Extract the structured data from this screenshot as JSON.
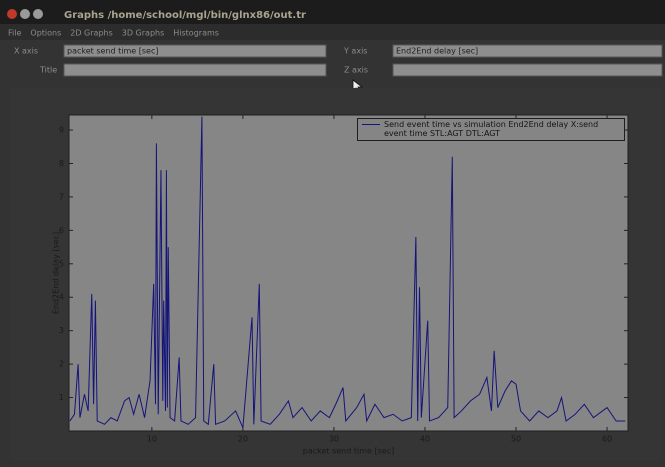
{
  "window": {
    "title": "Graphs  /home/school/mgl/bin/glnx86/out.tr"
  },
  "menu": [
    "File",
    "Options",
    "2D Graphs",
    "3D Graphs",
    "Histograms"
  ],
  "fields": [
    {
      "label": "X axis",
      "value": "packet send time [sec]"
    },
    {
      "label": "Y axis",
      "value": "End2End delay [sec]"
    },
    {
      "label": "Title"
    },
    {
      "label": "Z axis"
    }
  ],
  "chart_data": {
    "type": "line",
    "xlabel": "packet send time [sec]",
    "ylabel": "End2End delay [sec]",
    "xlim": [
      0.9,
      62.3
    ],
    "ylim": [
      0,
      9.45
    ],
    "xticks": [
      10,
      20,
      30,
      40,
      50,
      60
    ],
    "yticks": [
      1,
      2,
      3,
      4,
      5,
      6,
      7,
      8,
      9
    ],
    "legend": "upper right",
    "x": [
      1.0,
      1.5,
      1.9,
      2.1,
      2.6,
      3.0,
      3.4,
      3.6,
      3.8,
      4.0,
      4.8,
      5.5,
      6.2,
      7.0,
      7.5,
      8.0,
      8.6,
      9.2,
      9.8,
      10.2,
      10.4,
      10.5,
      10.7,
      11.0,
      11.2,
      11.3,
      11.5,
      11.6,
      11.7,
      11.8,
      12.0,
      12.5,
      13.0,
      13.2,
      14.0,
      14.8,
      15.5,
      15.7,
      16.2,
      16.8,
      17.0,
      18.0,
      19.2,
      20.0,
      21.0,
      21.2,
      21.8,
      22.0,
      23.0,
      24.0,
      25.0,
      25.5,
      26.5,
      27.5,
      28.5,
      29.5,
      30.2,
      31.0,
      31.3,
      32.5,
      33.3,
      33.6,
      34.5,
      35.5,
      36.5,
      37.5,
      38.5,
      39.0,
      39.2,
      39.4,
      39.6,
      40.3,
      40.5,
      41.5,
      42.5,
      43.0,
      43.2,
      44.0,
      45.0,
      46.0,
      46.8,
      47.3,
      47.6,
      48.0,
      48.8,
      49.5,
      50.0,
      50.5,
      51.5,
      52.5,
      53.5,
      54.5,
      55.0,
      55.5,
      56.5,
      57.5,
      58.5,
      59.5,
      60.0,
      61.0,
      62.0
    ],
    "series": [
      {
        "name": "Send event time vs simulation End2End delay X:send event time STL:AGT DTL:AGT",
        "color": "#14147a",
        "values": [
          0.3,
          0.5,
          2.0,
          0.4,
          1.1,
          0.6,
          4.1,
          0.8,
          3.9,
          0.3,
          0.2,
          0.4,
          0.3,
          0.9,
          1.0,
          0.5,
          1.1,
          0.4,
          1.5,
          4.4,
          0.8,
          8.6,
          0.5,
          7.8,
          0.9,
          3.9,
          0.6,
          7.8,
          0.7,
          5.5,
          0.4,
          0.3,
          2.2,
          0.3,
          0.2,
          0.4,
          9.4,
          0.3,
          0.2,
          2.0,
          0.2,
          0.3,
          0.6,
          0.1,
          3.4,
          0.2,
          4.4,
          0.3,
          0.2,
          0.5,
          0.9,
          0.4,
          0.7,
          0.3,
          0.6,
          0.4,
          0.8,
          1.3,
          0.3,
          0.7,
          1.1,
          0.3,
          0.8,
          0.4,
          0.5,
          0.3,
          0.4,
          5.8,
          0.3,
          4.3,
          0.4,
          3.3,
          0.3,
          0.4,
          0.7,
          8.2,
          0.4,
          0.6,
          0.9,
          1.1,
          1.6,
          0.6,
          2.4,
          0.7,
          1.2,
          1.5,
          1.4,
          0.6,
          0.3,
          0.6,
          0.4,
          0.6,
          1.0,
          0.3,
          0.5,
          0.8,
          0.4,
          0.6,
          0.7,
          0.3,
          0.3
        ]
      }
    ]
  }
}
